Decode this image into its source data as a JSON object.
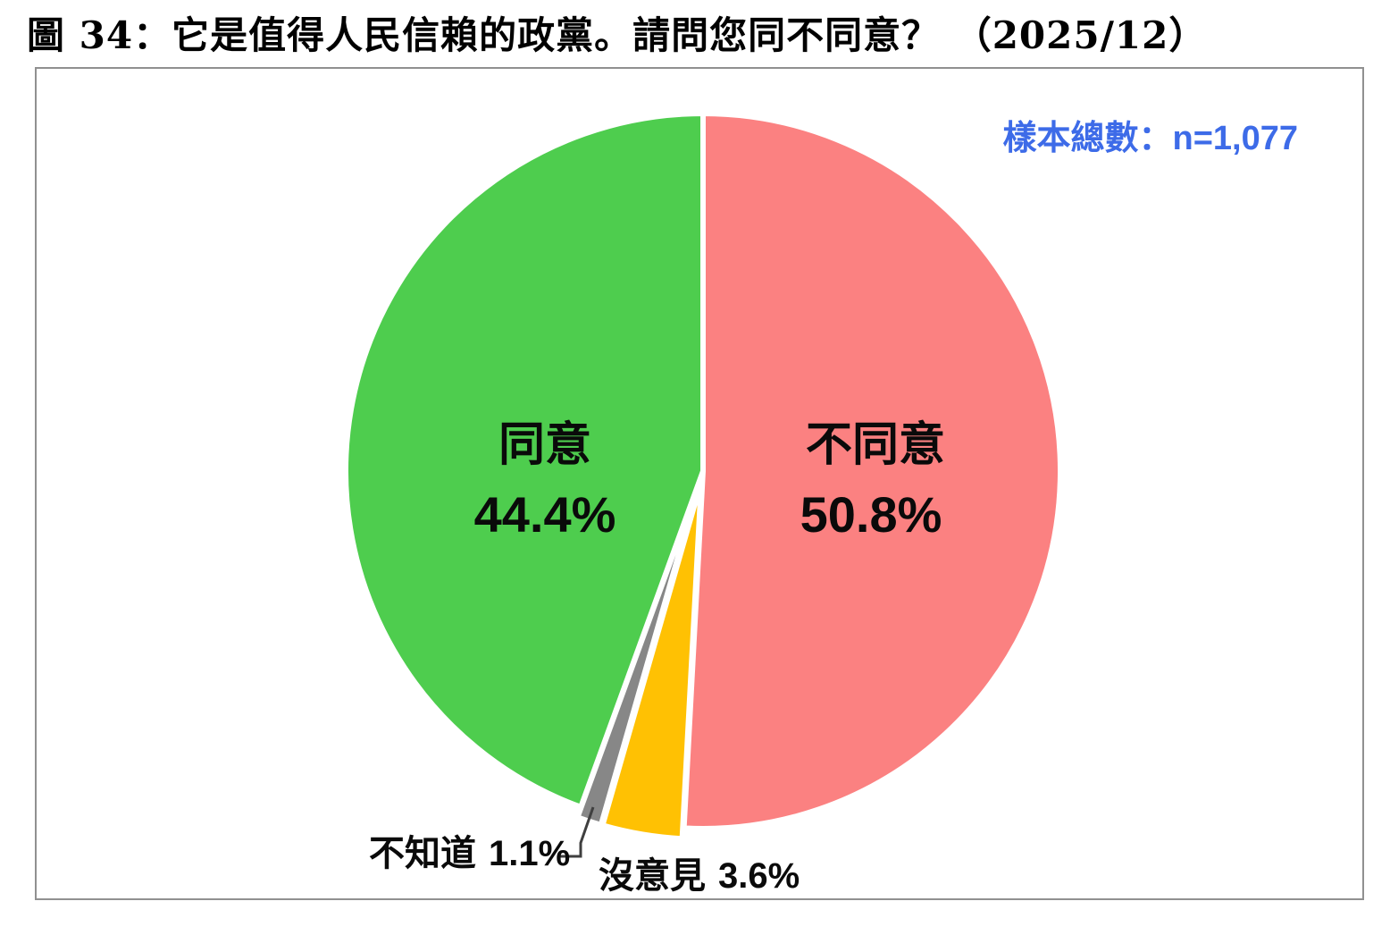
{
  "page": {
    "background": "#ffffff",
    "box_border_color": "#909090"
  },
  "chart_data": {
    "type": "pie",
    "title": "圖 34：它是值得人民信賴的政黨。請問您同不同意？ （2025/12）",
    "annotation": "樣本總數：n=1,077",
    "annotation_color": "#3D6BE8",
    "sample_n": "1,077",
    "start_angle_deg": 0,
    "direction": "clockwise",
    "legend_position": "none",
    "slices": [
      {
        "key": "disagree",
        "name": "不同意",
        "value": 50.8,
        "pct_label": "50.8%",
        "color": "#FB8181"
      },
      {
        "key": "no-opinion",
        "name": "沒意見",
        "value": 3.6,
        "pct_label": "3.6%",
        "color": "#FFC103"
      },
      {
        "key": "dont-know",
        "name": "不知道",
        "value": 1.1,
        "pct_label": "1.1%",
        "color": "#878787"
      },
      {
        "key": "agree",
        "name": "同意",
        "value": 44.4,
        "pct_label": "44.4%",
        "color": "#4ECD4E"
      }
    ]
  }
}
